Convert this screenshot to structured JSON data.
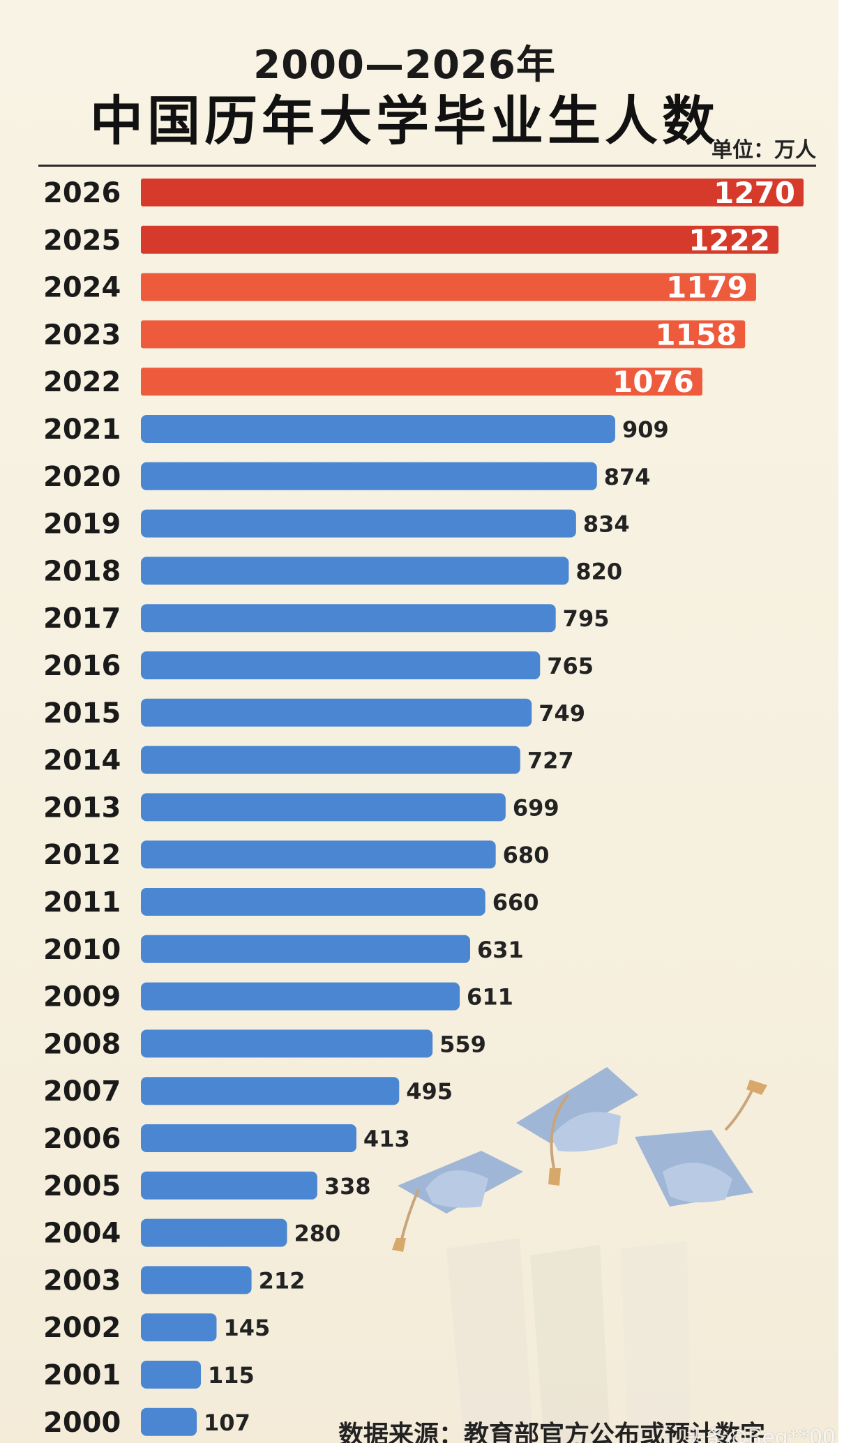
{
  "title": "2000—2026年",
  "subtitle": "中国历年大学毕业生人数",
  "unit": "单位：万人",
  "source": "数据来源：教育部官方公布或预计数字",
  "watermark": "头条@Beq**00",
  "colors": {
    "recent_bar": "#ee5a3c",
    "latest_bar": "#d63a2a",
    "historic_bar": "#4a86d1",
    "background": "#f7f1e1",
    "text": "#1a1a1a"
  },
  "decoration": "graduation-caps-illustration",
  "chart_data": {
    "type": "bar",
    "orientation": "horizontal",
    "title": "2000—2026年",
    "subtitle": "中国历年大学毕业生人数",
    "unit": "单位：万人",
    "categories": [
      "2026",
      "2025",
      "2024",
      "2023",
      "2022",
      "2021",
      "2020",
      "2019",
      "2018",
      "2017",
      "2016",
      "2015",
      "2014",
      "2013",
      "2012",
      "2011",
      "2010",
      "2009",
      "2008",
      "2007",
      "2006",
      "2005",
      "2004",
      "2003",
      "2002",
      "2001",
      "2000"
    ],
    "values": [
      1270,
      1222,
      1179,
      1158,
      1076,
      909,
      874,
      834,
      820,
      795,
      765,
      749,
      727,
      699,
      680,
      660,
      631,
      611,
      559,
      495,
      413,
      338,
      280,
      212,
      145,
      115,
      107
    ],
    "value_labels": [
      "1270",
      "1222",
      "1179",
      "1158",
      "1076",
      "909",
      "874",
      "834",
      "820",
      "795",
      "765",
      "749",
      "727",
      "699",
      "680",
      "660",
      "631",
      "611",
      "559",
      "495",
      "413",
      "338",
      "280",
      "212",
      "145",
      "115",
      "107"
    ],
    "highlighted_years": [
      "2026",
      "2025",
      "2024",
      "2023",
      "2022"
    ],
    "xlim": [
      0,
      1270
    ],
    "grid": false,
    "legend": "none"
  }
}
